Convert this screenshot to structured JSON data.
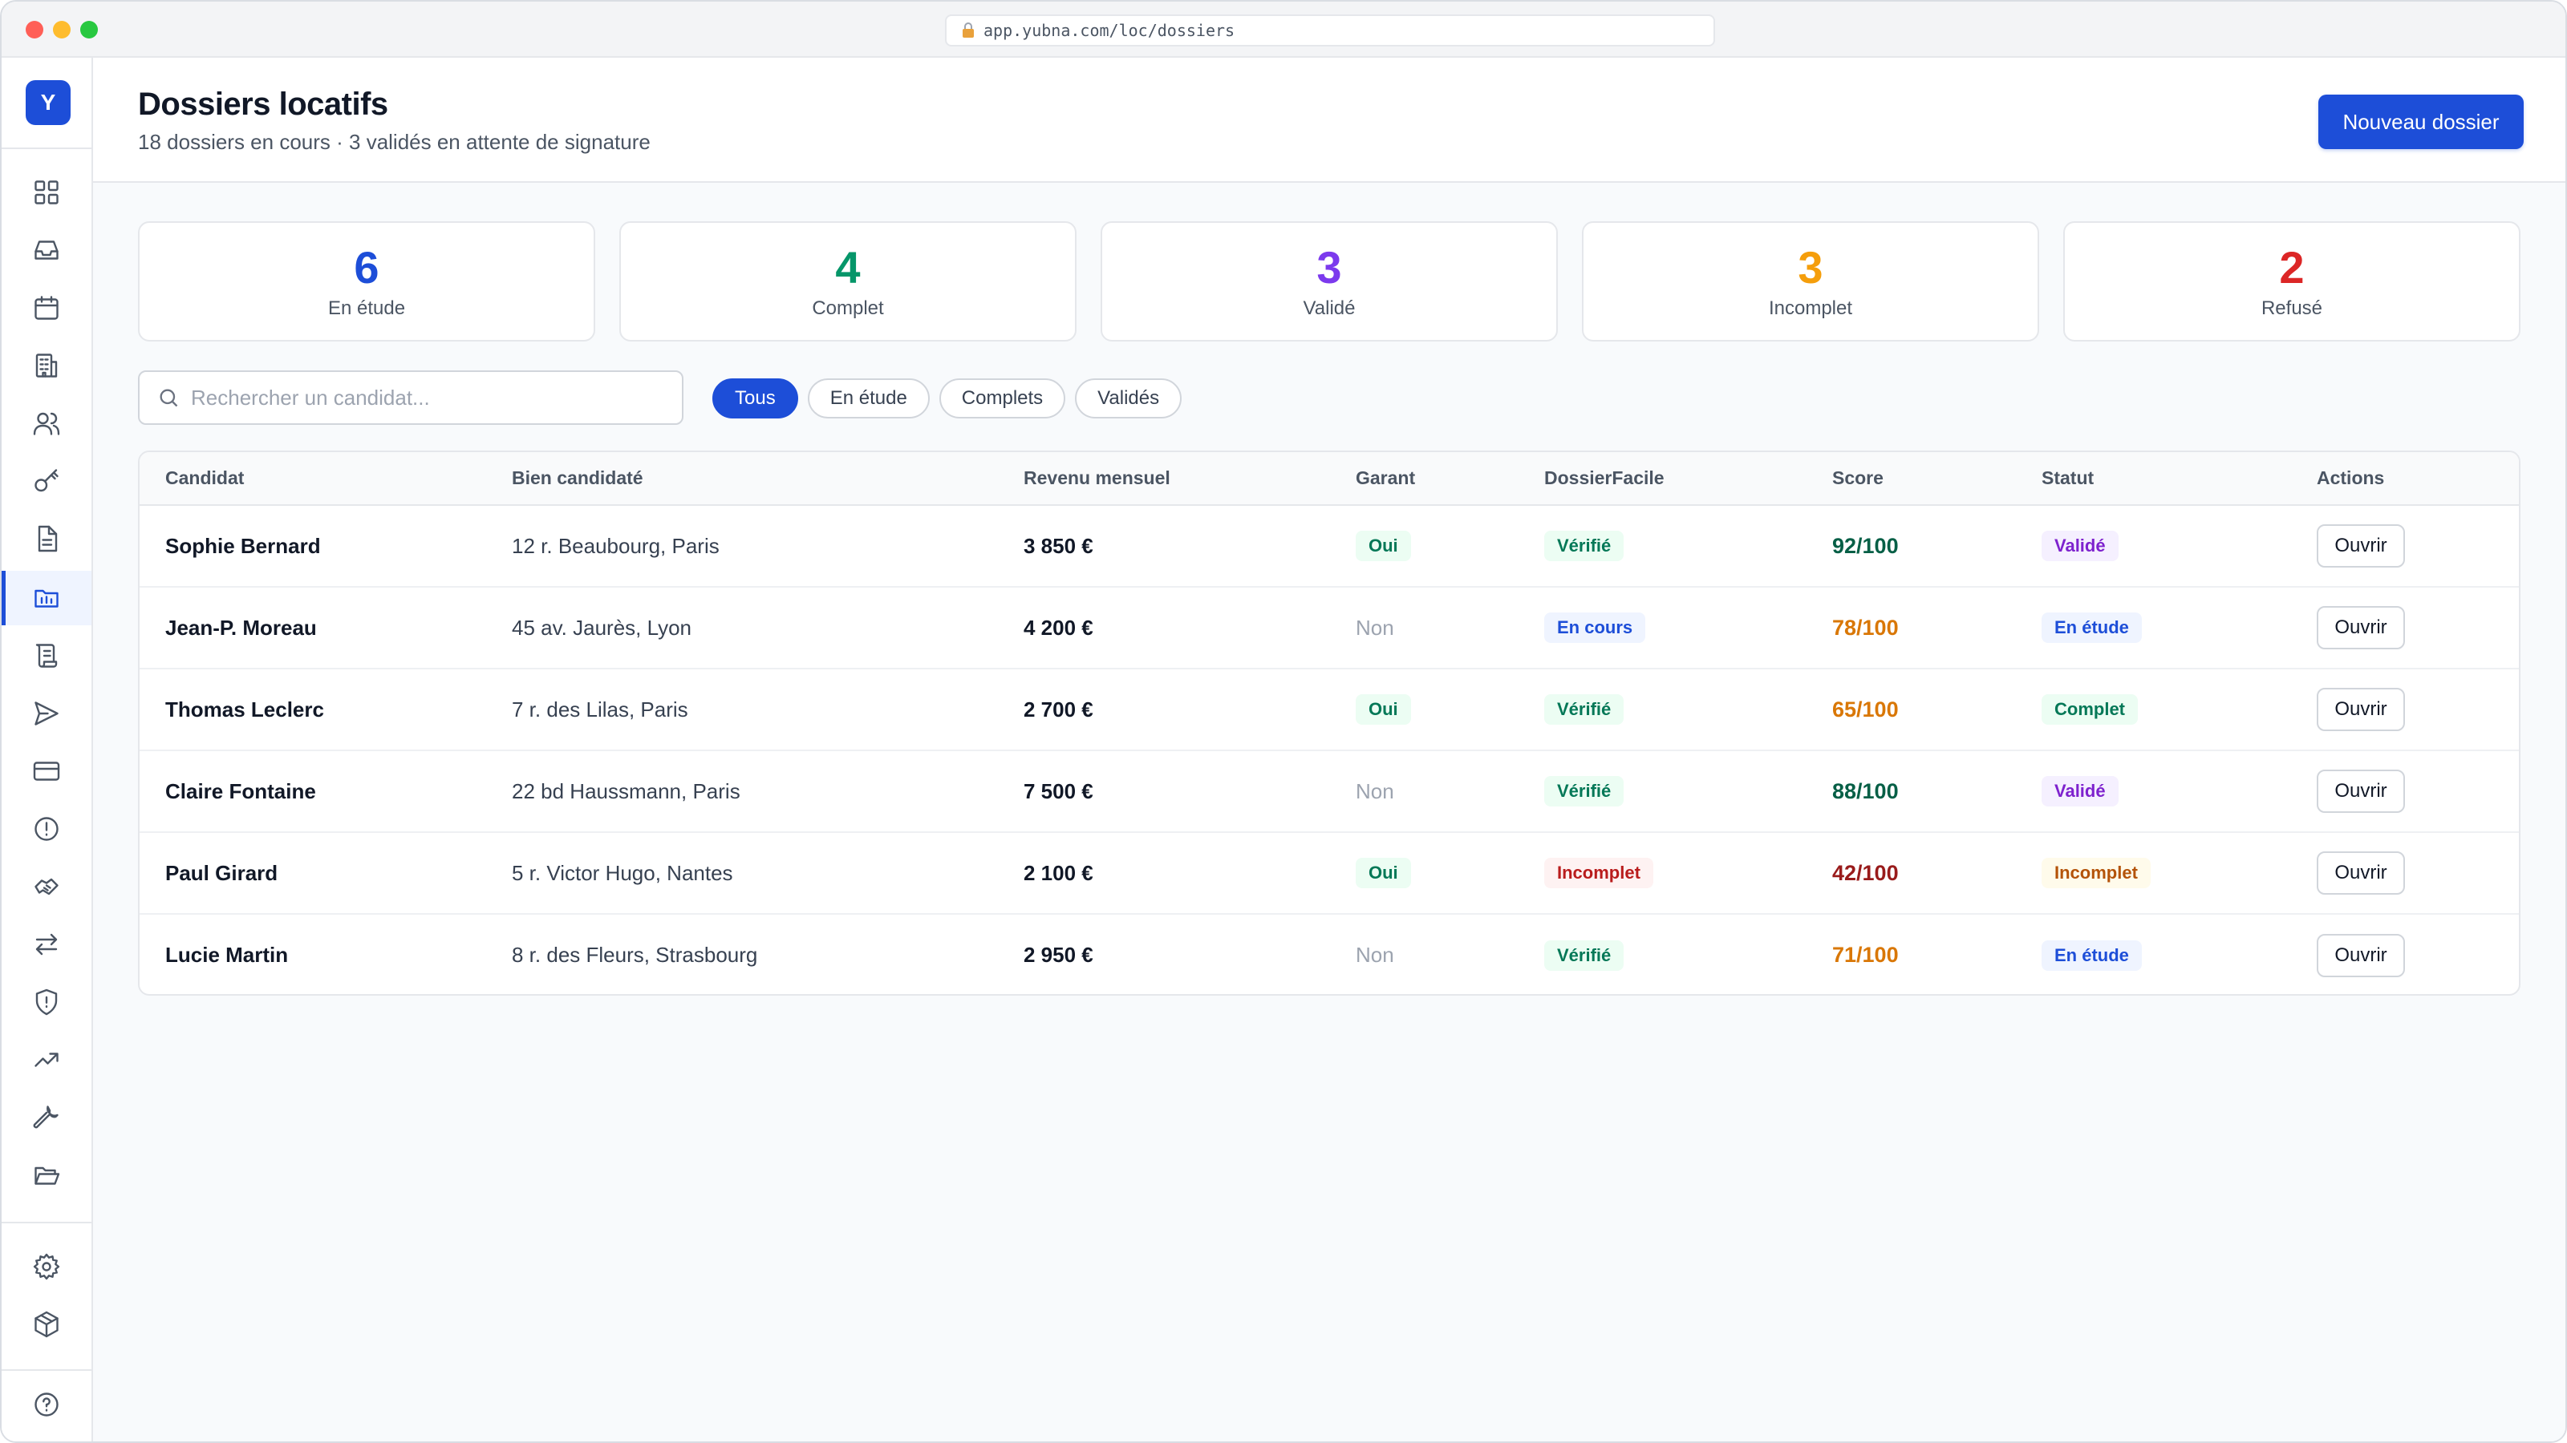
{
  "browser": {
    "url": "app.yubna.com/loc/dossiers"
  },
  "sidebar": {
    "logo": "Y",
    "items": [
      {
        "icon": "dashboard-icon"
      },
      {
        "icon": "inbox-icon"
      },
      {
        "icon": "calendar-icon"
      },
      {
        "icon": "building-icon"
      },
      {
        "icon": "users-icon"
      },
      {
        "icon": "key-icon"
      },
      {
        "icon": "document-icon"
      },
      {
        "icon": "rental-folders-icon",
        "active": true
      },
      {
        "icon": "scroll-icon"
      },
      {
        "icon": "send-icon"
      },
      {
        "icon": "card-icon"
      },
      {
        "icon": "alert-icon"
      },
      {
        "icon": "handshake-icon"
      },
      {
        "icon": "transfer-icon"
      },
      {
        "icon": "shield-icon"
      },
      {
        "icon": "trend-icon"
      },
      {
        "icon": "wrench-icon"
      },
      {
        "icon": "folder-open-icon"
      },
      {
        "icon": "settings-icon"
      },
      {
        "icon": "package-icon"
      },
      {
        "icon": "help-icon"
      }
    ]
  },
  "header": {
    "title": "Dossiers locatifs",
    "subtitle": "18 dossiers en cours · 3 validés en attente de signature",
    "new_button": "Nouveau dossier"
  },
  "stats": [
    {
      "value": "6",
      "label": "En étude",
      "color": "#1d4ed8"
    },
    {
      "value": "4",
      "label": "Complet",
      "color": "#059669"
    },
    {
      "value": "3",
      "label": "Validé",
      "color": "#7c3aed"
    },
    {
      "value": "3",
      "label": "Incomplet",
      "color": "#f59e0b"
    },
    {
      "value": "2",
      "label": "Refusé",
      "color": "#dc2626"
    }
  ],
  "search": {
    "placeholder": "Rechercher un candidat..."
  },
  "filters": [
    {
      "label": "Tous",
      "active": true
    },
    {
      "label": "En étude"
    },
    {
      "label": "Complets"
    },
    {
      "label": "Validés"
    }
  ],
  "table": {
    "columns": [
      "Candidat",
      "Bien candidaté",
      "Revenu mensuel",
      "Garant",
      "DossierFacile",
      "Score",
      "Statut",
      "Actions"
    ],
    "open_label": "Ouvrir",
    "rows": [
      {
        "candidate": "Sophie Bernard",
        "property": "12 r. Beaubourg, Paris",
        "income": "3 850 €",
        "guarantor": "Oui",
        "dossierfacile": "Vérifié",
        "score": "92/100",
        "score_color": "#065f46",
        "status": "Validé",
        "status_tone": "purple",
        "df_tone": "green"
      },
      {
        "candidate": "Jean-P. Moreau",
        "property": "45 av. Jaurès, Lyon",
        "income": "4 200 €",
        "guarantor": "Non",
        "dossierfacile": "En cours",
        "score": "78/100",
        "score_color": "#d97706",
        "status": "En étude",
        "status_tone": "blue",
        "df_tone": "blue"
      },
      {
        "candidate": "Thomas Leclerc",
        "property": "7 r. des Lilas, Paris",
        "income": "2 700 €",
        "guarantor": "Oui",
        "dossierfacile": "Vérifié",
        "score": "65/100",
        "score_color": "#d97706",
        "status": "Complet",
        "status_tone": "green",
        "df_tone": "green"
      },
      {
        "candidate": "Claire Fontaine",
        "property": "22 bd Haussmann, Paris",
        "income": "7 500 €",
        "guarantor": "Non",
        "dossierfacile": "Vérifié",
        "score": "88/100",
        "score_color": "#065f46",
        "status": "Validé",
        "status_tone": "purple",
        "df_tone": "green"
      },
      {
        "candidate": "Paul Girard",
        "property": "5 r. Victor Hugo, Nantes",
        "income": "2 100 €",
        "guarantor": "Oui",
        "dossierfacile": "Incomplet",
        "score": "42/100",
        "score_color": "#991b1b",
        "status": "Incomplet",
        "status_tone": "amber",
        "df_tone": "red"
      },
      {
        "candidate": "Lucie Martin",
        "property": "8 r. des Fleurs, Strasbourg",
        "income": "2 950 €",
        "guarantor": "Non",
        "dossierfacile": "Vérifié",
        "score": "71/100",
        "score_color": "#d97706",
        "status": "En étude",
        "status_tone": "blue",
        "df_tone": "green"
      }
    ]
  }
}
